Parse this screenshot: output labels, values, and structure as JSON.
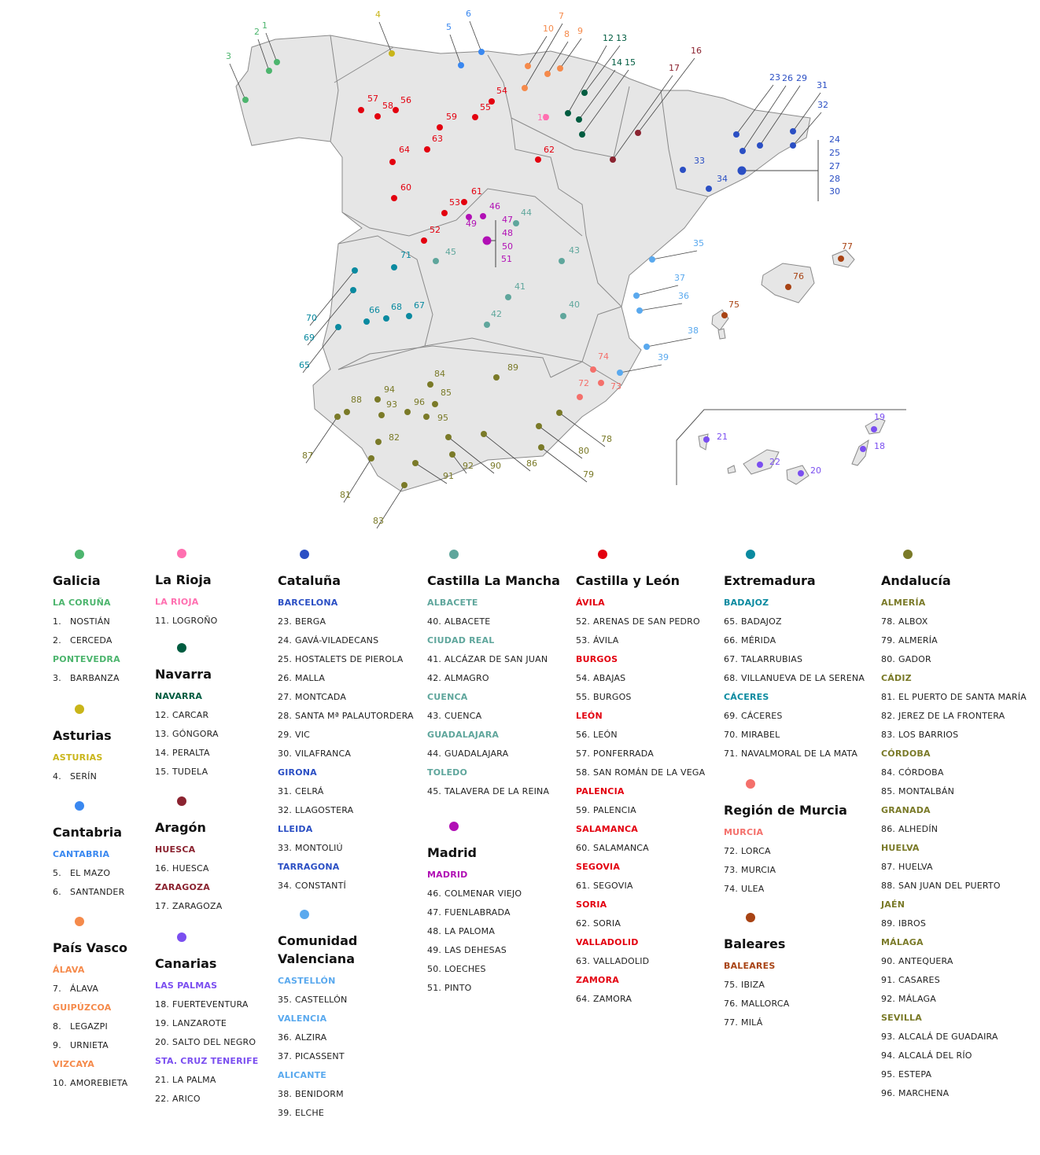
{
  "map": {
    "land_color": "#e6e6e6",
    "border_color": "#8a8a8a",
    "leader_color": "#444444"
  },
  "regions": [
    {
      "name": "Galicia",
      "color": "#4db56e",
      "provinces": [
        {
          "name": "LA CORUÑA",
          "items": [
            {
              "num": "1.",
              "name": "NOSTIÁN"
            },
            {
              "num": "2.",
              "name": "CERCEDA"
            }
          ]
        },
        {
          "name": "PONTEVEDRA",
          "items": [
            {
              "num": "3.",
              "name": "BARBANZA"
            }
          ]
        }
      ]
    },
    {
      "name": "Asturias",
      "color": "#c9b519",
      "provinces": [
        {
          "name": "ASTURIAS",
          "items": [
            {
              "num": "4.",
              "name": "SERÍN"
            }
          ]
        }
      ]
    },
    {
      "name": "Cantabria",
      "color": "#3a88f0",
      "provinces": [
        {
          "name": "CANTABRIA",
          "items": [
            {
              "num": "5.",
              "name": "EL MAZO"
            },
            {
              "num": "6.",
              "name": "SANTANDER"
            }
          ]
        }
      ]
    },
    {
      "name": "País Vasco",
      "color": "#f58a4b",
      "provinces": [
        {
          "name": "ÁLAVA",
          "items": [
            {
              "num": "7.",
              "name": "ÁLAVA"
            }
          ]
        },
        {
          "name": "GUIPÚZCOA",
          "items": [
            {
              "num": "8.",
              "name": "LEGAZPI"
            },
            {
              "num": "9.",
              "name": "URNIETA"
            }
          ]
        },
        {
          "name": "VIZCAYA",
          "items": [
            {
              "num": "10.",
              "name": "AMOREBIETA"
            }
          ]
        }
      ]
    },
    {
      "name": "La Rioja",
      "color": "#ff6fb0",
      "provinces": [
        {
          "name": "LA RIOJA",
          "items": [
            {
              "num": "11.",
              "name": "LOGROÑO"
            }
          ]
        }
      ]
    },
    {
      "name": "Navarra",
      "color": "#005c40",
      "provinces": [
        {
          "name": "NAVARRA",
          "items": [
            {
              "num": "12.",
              "name": "CARCAR"
            },
            {
              "num": "13.",
              "name": "GÓNGORA"
            },
            {
              "num": "14.",
              "name": "PERALTA"
            },
            {
              "num": "15.",
              "name": "TUDELA"
            }
          ]
        }
      ]
    },
    {
      "name": "Aragón",
      "color": "#8b2330",
      "provinces": [
        {
          "name": "HUESCA",
          "items": [
            {
              "num": "16.",
              "name": "HUESCA"
            }
          ]
        },
        {
          "name": "ZARAGOZA",
          "items": [
            {
              "num": "17.",
              "name": "ZARAGOZA"
            }
          ]
        }
      ]
    },
    {
      "name": "Canarias",
      "color": "#7b4ff0",
      "provinces": [
        {
          "name": "LAS PALMAS",
          "items": [
            {
              "num": "18.",
              "name": "FUERTEVENTURA"
            },
            {
              "num": "19.",
              "name": "LANZAROTE"
            },
            {
              "num": "20.",
              "name": "SALTO DEL NEGRO"
            }
          ]
        },
        {
          "name": "STA. CRUZ TENERIFE",
          "items": [
            {
              "num": "21.",
              "name": "LA PALMA"
            },
            {
              "num": "22.",
              "name": "ARICO"
            }
          ]
        }
      ]
    },
    {
      "name": "Cataluña",
      "color": "#2b4fc4",
      "provinces": [
        {
          "name": "BARCELONA",
          "items": [
            {
              "num": "23.",
              "name": "BERGA"
            },
            {
              "num": "24.",
              "name": "GAVÁ-VILADECANS"
            },
            {
              "num": "25.",
              "name": "HOSTALETS DE PIEROLA"
            },
            {
              "num": "26.",
              "name": "MALLA"
            },
            {
              "num": "27.",
              "name": "MONTCADA"
            },
            {
              "num": "28.",
              "name": "SANTA Mª PALAUTORDERA"
            },
            {
              "num": "29.",
              "name": "VIC"
            },
            {
              "num": "30.",
              "name": "VILAFRANCA"
            }
          ]
        },
        {
          "name": "GIRONA",
          "items": [
            {
              "num": "31.",
              "name": "CELRÁ"
            },
            {
              "num": "32.",
              "name": "LLAGOSTERA"
            }
          ]
        },
        {
          "name": "LLEIDA",
          "items": [
            {
              "num": "33.",
              "name": "MONTOLIÚ"
            }
          ]
        },
        {
          "name": "TARRAGONA",
          "items": [
            {
              "num": "34.",
              "name": "CONSTANTÍ"
            }
          ]
        }
      ]
    },
    {
      "name": "Comunidad Valenciana",
      "color": "#5aa9ee",
      "provinces": [
        {
          "name": "CASTELLÓN",
          "items": [
            {
              "num": "35.",
              "name": "CASTELLÓN"
            }
          ]
        },
        {
          "name": "VALENCIA",
          "items": [
            {
              "num": "36.",
              "name": "ALZIRA"
            },
            {
              "num": "37.",
              "name": "PICASSENT"
            }
          ]
        },
        {
          "name": "ALICANTE",
          "items": [
            {
              "num": "38.",
              "name": "BENIDORM"
            },
            {
              "num": "39.",
              "name": "ELCHE"
            }
          ]
        }
      ]
    },
    {
      "name": "Castilla La Mancha",
      "color": "#5fa69c",
      "provinces": [
        {
          "name": "ALBACETE",
          "items": [
            {
              "num": "40.",
              "name": "ALBACETE"
            }
          ]
        },
        {
          "name": "CIUDAD REAL",
          "items": [
            {
              "num": "41.",
              "name": "ALCÁZAR DE SAN JUAN"
            },
            {
              "num": "42.",
              "name": "ALMAGRO"
            }
          ]
        },
        {
          "name": "CUENCA",
          "items": [
            {
              "num": "43.",
              "name": "CUENCA"
            }
          ]
        },
        {
          "name": "GUADALAJARA",
          "items": [
            {
              "num": "44.",
              "name": "GUADALAJARA"
            }
          ]
        },
        {
          "name": "TOLEDO",
          "items": [
            {
              "num": "45.",
              "name": "TALAVERA DE LA REINA"
            }
          ]
        }
      ]
    },
    {
      "name": "Madrid",
      "color": "#b10fb5",
      "provinces": [
        {
          "name": "MADRID",
          "items": [
            {
              "num": "46.",
              "name": "COLMENAR VIEJO"
            },
            {
              "num": "47.",
              "name": "FUENLABRADA"
            },
            {
              "num": "48.",
              "name": "LA PALOMA"
            },
            {
              "num": "49.",
              "name": "LAS DEHESAS"
            },
            {
              "num": "50.",
              "name": "LOECHES"
            },
            {
              "num": "51.",
              "name": "PINTO"
            }
          ]
        }
      ]
    },
    {
      "name": "Castilla y León",
      "color": "#e3000f",
      "provinces": [
        {
          "name": "ÁVILA",
          "items": [
            {
              "num": "52.",
              "name": "ARENAS DE SAN PEDRO"
            },
            {
              "num": "53.",
              "name": "ÁVILA"
            }
          ]
        },
        {
          "name": "BURGOS",
          "items": [
            {
              "num": "54.",
              "name": "ABAJAS"
            },
            {
              "num": "55.",
              "name": "BURGOS"
            }
          ]
        },
        {
          "name": "LEÓN",
          "items": [
            {
              "num": "56.",
              "name": "LEÓN"
            },
            {
              "num": "57.",
              "name": "PONFERRADA"
            },
            {
              "num": "58.",
              "name": "SAN ROMÁN DE LA VEGA"
            }
          ]
        },
        {
          "name": "PALENCIA",
          "items": [
            {
              "num": "59.",
              "name": "PALENCIA"
            }
          ]
        },
        {
          "name": "SALAMANCA",
          "items": [
            {
              "num": "60.",
              "name": "SALAMANCA"
            }
          ]
        },
        {
          "name": "SEGOVIA",
          "items": [
            {
              "num": "61.",
              "name": "SEGOVIA"
            }
          ]
        },
        {
          "name": "SORIA",
          "items": [
            {
              "num": "62.",
              "name": "SORIA"
            }
          ]
        },
        {
          "name": "VALLADOLID",
          "items": [
            {
              "num": "63.",
              "name": "VALLADOLID"
            }
          ]
        },
        {
          "name": "ZAMORA",
          "items": [
            {
              "num": "64.",
              "name": "ZAMORA"
            }
          ]
        }
      ]
    },
    {
      "name": "Extremadura",
      "color": "#0a8aa0",
      "provinces": [
        {
          "name": "BADAJOZ",
          "items": [
            {
              "num": "65.",
              "name": "BADAJOZ"
            },
            {
              "num": "66.",
              "name": "MÉRIDA"
            },
            {
              "num": "67.",
              "name": "TALARRUBIAS"
            },
            {
              "num": "68.",
              "name": "VILLANUEVA DE LA SERENA"
            }
          ]
        },
        {
          "name": "CÁCERES",
          "items": [
            {
              "num": "69.",
              "name": "CÁCERES"
            },
            {
              "num": "70.",
              "name": "MIRABEL"
            },
            {
              "num": "71.",
              "name": "NAVALMORAL DE LA MATA"
            }
          ]
        }
      ]
    },
    {
      "name": "Región de Murcia",
      "color": "#f4706b",
      "provinces": [
        {
          "name": "MURCIA",
          "items": [
            {
              "num": "72.",
              "name": "LORCA"
            },
            {
              "num": "73.",
              "name": "MURCIA"
            },
            {
              "num": "74.",
              "name": "ULEA"
            }
          ]
        }
      ]
    },
    {
      "name": "Baleares",
      "color": "#a84314",
      "provinces": [
        {
          "name": "BALEARES",
          "items": [
            {
              "num": "75.",
              "name": "IBIZA"
            },
            {
              "num": "76.",
              "name": "MALLORCA"
            },
            {
              "num": "77.",
              "name": "MILÁ"
            }
          ]
        }
      ]
    },
    {
      "name": "Andalucía",
      "color": "#7a7a28",
      "provinces": [
        {
          "name": "ALMERÍA",
          "items": [
            {
              "num": "78.",
              "name": "ALBOX"
            },
            {
              "num": "79.",
              "name": "ALMERÍA"
            },
            {
              "num": "80.",
              "name": "GADOR"
            }
          ]
        },
        {
          "name": "CÁDIZ",
          "items": [
            {
              "num": "81.",
              "name": "EL PUERTO DE SANTA MARÍA"
            },
            {
              "num": "82.",
              "name": "JEREZ DE LA FRONTERA"
            },
            {
              "num": "83.",
              "name": "LOS BARRIOS"
            }
          ]
        },
        {
          "name": "CÓRDOBA",
          "items": [
            {
              "num": "84.",
              "name": "CÓRDOBA"
            },
            {
              "num": "85.",
              "name": "MONTALBÁN"
            }
          ]
        },
        {
          "name": "GRANADA",
          "items": [
            {
              "num": "86.",
              "name": "ALHEDÍN"
            }
          ]
        },
        {
          "name": "HUELVA",
          "items": [
            {
              "num": "87.",
              "name": "HUELVA"
            },
            {
              "num": "88.",
              "name": "SAN JUAN DEL PUERTO"
            }
          ]
        },
        {
          "name": "JAÉN",
          "items": [
            {
              "num": "89.",
              "name": "IBROS"
            }
          ]
        },
        {
          "name": "MÁLAGA",
          "items": [
            {
              "num": "90.",
              "name": "ANTEQUERA"
            },
            {
              "num": "91.",
              "name": "CASARES"
            },
            {
              "num": "92.",
              "name": "MÁLAGA"
            }
          ]
        },
        {
          "name": "SEVILLA",
          "items": [
            {
              "num": "93.",
              "name": "ALCALÁ DE GUADAIRA"
            },
            {
              "num": "94.",
              "name": "ALCALÁ DEL RÍO"
            },
            {
              "num": "95.",
              "name": "ESTEPA"
            },
            {
              "num": "96.",
              "name": "MARCHENA"
            }
          ]
        }
      ]
    }
  ]
}
